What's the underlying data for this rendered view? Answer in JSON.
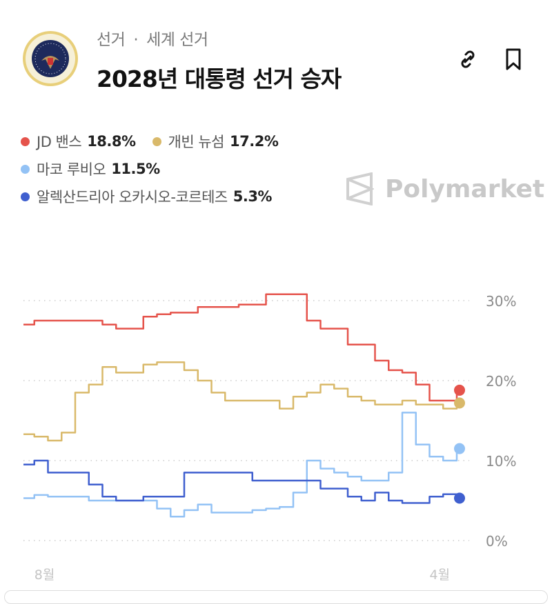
{
  "header": {
    "breadcrumb": [
      "선거",
      "세계 선거"
    ],
    "separator": "·",
    "title": "2028년 대통령 선거 승자",
    "seal_text": "SEAL OF THE PRESIDENT OF THE UNITED STATES"
  },
  "watermark": "Polymarket",
  "colors": {
    "vance": "#e5534b",
    "newsom": "#d9b96a",
    "rubio": "#93c2f5",
    "aoc": "#3f5fcf"
  },
  "legend": [
    {
      "name": "JD 밴스",
      "value": "18.8%",
      "color": "#e5534b"
    },
    {
      "name": "개빈 뉴섬",
      "value": "17.2%",
      "color": "#d9b96a"
    },
    {
      "name": "마코 루비오",
      "value": "11.5%",
      "color": "#93c2f5"
    },
    {
      "name": "알렉산드리아 오카시오-코르테즈",
      "value": "5.3%",
      "color": "#3f5fcf"
    }
  ],
  "chart_data": {
    "type": "line",
    "title": "",
    "xlabel": "",
    "ylabel": "",
    "ylim": [
      0,
      30
    ],
    "yticks": [
      "0%",
      "10%",
      "20%",
      "30%"
    ],
    "ytick_values": [
      0,
      10,
      20,
      30
    ],
    "xtick_labels": [
      "8월",
      "4월"
    ],
    "xtick_positions": [
      1,
      30
    ],
    "grid": true,
    "legend_placement": "top-left",
    "series": [
      {
        "name": "JD 밴스",
        "color": "#e5534b",
        "values": [
          27,
          27.5,
          27.5,
          27.5,
          27.5,
          27.5,
          27,
          26.5,
          26.5,
          28,
          28.3,
          28.5,
          28.5,
          29.2,
          29.2,
          29.2,
          29.5,
          29.5,
          30.8,
          30.8,
          30.8,
          27.5,
          26.5,
          26.5,
          24.5,
          24.5,
          22.5,
          21.3,
          21,
          19.5,
          17.5,
          17.5,
          18.8
        ]
      },
      {
        "name": "개빈 뉴섬",
        "color": "#d9b96a",
        "values": [
          13.3,
          13,
          12.5,
          13.5,
          18.5,
          19.5,
          21.7,
          21,
          21,
          22,
          22.3,
          22.3,
          21.3,
          20,
          18.5,
          17.5,
          17.5,
          17.5,
          17.5,
          16.5,
          18,
          18.5,
          19.5,
          19,
          18,
          17.5,
          17,
          17,
          17.5,
          17,
          17,
          16.5,
          17.2
        ]
      },
      {
        "name": "마코 루비오",
        "color": "#93c2f5",
        "values": [
          5.3,
          5.7,
          5.5,
          5.5,
          5.5,
          5,
          5,
          5,
          5,
          5,
          4,
          3,
          3.8,
          4.5,
          3.5,
          3.5,
          3.5,
          3.8,
          4,
          4.2,
          6,
          10,
          9,
          8.5,
          8,
          7.5,
          7.5,
          8.5,
          16,
          12,
          10.5,
          10,
          11.5
        ]
      },
      {
        "name": "알렉산드리아 오카시오-코르테즈",
        "color": "#3f5fcf",
        "values": [
          9.5,
          10,
          8.5,
          8.5,
          8.5,
          7,
          5.5,
          5,
          5,
          5.5,
          5.5,
          5.5,
          8.5,
          8.5,
          8.5,
          8.5,
          8.5,
          7.5,
          7.5,
          7.5,
          7.5,
          7.5,
          6.5,
          6.5,
          5.5,
          5,
          6,
          5,
          4.7,
          4.7,
          5.5,
          5.8,
          5.3
        ]
      }
    ]
  }
}
